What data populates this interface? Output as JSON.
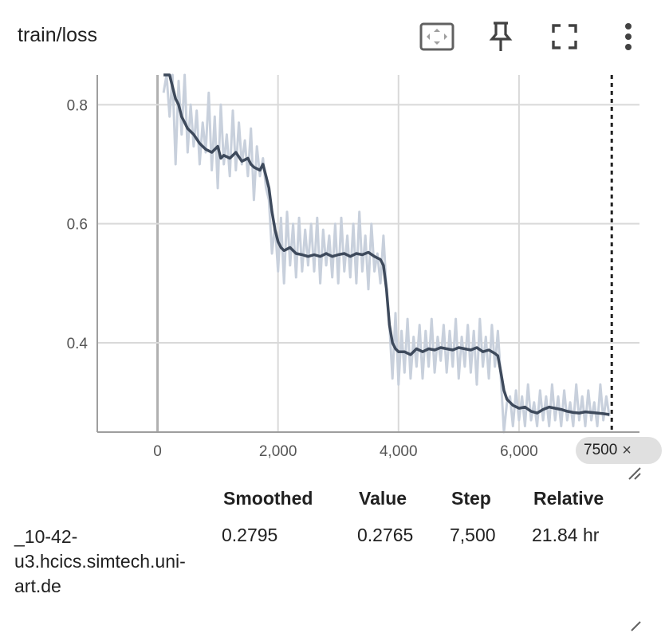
{
  "card": {
    "title": "train/loss",
    "actions": [
      {
        "name": "fit-domain",
        "icon": "fit-to-data-icon"
      },
      {
        "name": "pin",
        "icon": "pin-icon"
      },
      {
        "name": "fullscreen",
        "icon": "fullscreen-icon"
      },
      {
        "name": "more",
        "icon": "more-vert-icon"
      }
    ]
  },
  "step_badge": {
    "value": "7500",
    "close": "×"
  },
  "table": {
    "headers": {
      "smoothed": "Smoothed",
      "value": "Value",
      "step": "Step",
      "relative": "Relative"
    },
    "row": {
      "run": "_10-42-\n​u3.hcics.simtech.uni-\nart.de",
      "smoothed": "0.2795",
      "value": "0.2765",
      "step": "7,500",
      "relative": "21.84 hr"
    }
  },
  "colors": {
    "smoothed": "#3e4a5c",
    "raw": "#c8d0dc",
    "grid": "#d9d9d9",
    "axis": "#9e9e9e"
  },
  "chart_data": {
    "type": "line",
    "title": "train/loss",
    "xlabel": "",
    "ylabel": "",
    "xlim": [
      -1000,
      8000
    ],
    "ylim": [
      0.25,
      0.85
    ],
    "xticks": [
      0,
      2000,
      4000,
      6000
    ],
    "xtick_labels": [
      "0",
      "2,000",
      "4,000",
      "6,000"
    ],
    "yticks": [
      0.4,
      0.6,
      0.8
    ],
    "ytick_labels": [
      "0.4",
      "0.6",
      "0.8"
    ],
    "grid": true,
    "cursor_step": 7500,
    "series": [
      {
        "name": "Smoothed",
        "x": [
          100,
          150,
          200,
          250,
          300,
          350,
          400,
          450,
          500,
          550,
          600,
          700,
          800,
          900,
          1000,
          1050,
          1100,
          1200,
          1300,
          1400,
          1500,
          1550,
          1600,
          1700,
          1750,
          1800,
          1850,
          1900,
          1950,
          2000,
          2050,
          2100,
          2200,
          2300,
          2400,
          2500,
          2600,
          2700,
          2800,
          2900,
          3000,
          3100,
          3200,
          3300,
          3400,
          3500,
          3600,
          3700,
          3750,
          3800,
          3850,
          3900,
          3950,
          4000,
          4100,
          4200,
          4300,
          4400,
          4500,
          4600,
          4700,
          4800,
          4900,
          5000,
          5100,
          5200,
          5300,
          5400,
          5500,
          5600,
          5650,
          5700,
          5750,
          5800,
          5850,
          5900,
          6000,
          6100,
          6200,
          6300,
          6400,
          6500,
          6600,
          6700,
          6800,
          6900,
          7000,
          7100,
          7200,
          7300,
          7400,
          7500
        ],
        "y": [
          0.89,
          0.87,
          0.85,
          0.83,
          0.81,
          0.8,
          0.78,
          0.77,
          0.76,
          0.755,
          0.75,
          0.735,
          0.725,
          0.72,
          0.73,
          0.71,
          0.715,
          0.71,
          0.72,
          0.705,
          0.71,
          0.7,
          0.695,
          0.69,
          0.7,
          0.68,
          0.66,
          0.62,
          0.59,
          0.57,
          0.56,
          0.555,
          0.56,
          0.55,
          0.548,
          0.545,
          0.548,
          0.545,
          0.55,
          0.545,
          0.548,
          0.55,
          0.545,
          0.55,
          0.548,
          0.552,
          0.545,
          0.54,
          0.53,
          0.49,
          0.43,
          0.4,
          0.39,
          0.385,
          0.385,
          0.38,
          0.39,
          0.385,
          0.39,
          0.388,
          0.392,
          0.39,
          0.388,
          0.392,
          0.39,
          0.388,
          0.392,
          0.385,
          0.388,
          0.382,
          0.378,
          0.35,
          0.32,
          0.305,
          0.3,
          0.295,
          0.29,
          0.292,
          0.285,
          0.282,
          0.288,
          0.292,
          0.29,
          0.288,
          0.285,
          0.283,
          0.282,
          0.284,
          0.283,
          0.282,
          0.281,
          0.2795
        ]
      },
      {
        "name": "Value",
        "x": [
          100,
          150,
          200,
          250,
          300,
          350,
          400,
          450,
          500,
          550,
          600,
          650,
          700,
          750,
          800,
          850,
          900,
          950,
          1000,
          1050,
          1100,
          1150,
          1200,
          1250,
          1300,
          1350,
          1400,
          1450,
          1500,
          1550,
          1600,
          1650,
          1700,
          1750,
          1800,
          1850,
          1900,
          1950,
          2000,
          2050,
          2100,
          2150,
          2200,
          2250,
          2300,
          2350,
          2400,
          2450,
          2500,
          2550,
          2600,
          2650,
          2700,
          2750,
          2800,
          2850,
          2900,
          2950,
          3000,
          3050,
          3100,
          3150,
          3200,
          3250,
          3300,
          3350,
          3400,
          3450,
          3500,
          3550,
          3600,
          3650,
          3700,
          3750,
          3800,
          3850,
          3900,
          3950,
          4000,
          4050,
          4100,
          4150,
          4200,
          4250,
          4300,
          4350,
          4400,
          4450,
          4500,
          4550,
          4600,
          4650,
          4700,
          4750,
          4800,
          4850,
          4900,
          4950,
          5000,
          5050,
          5100,
          5150,
          5200,
          5250,
          5300,
          5350,
          5400,
          5450,
          5500,
          5550,
          5600,
          5650,
          5700,
          5750,
          5800,
          5850,
          5900,
          5950,
          6000,
          6050,
          6100,
          6150,
          6200,
          6250,
          6300,
          6350,
          6400,
          6450,
          6500,
          6550,
          6600,
          6650,
          6700,
          6750,
          6800,
          6850,
          6900,
          6950,
          7000,
          7050,
          7100,
          7150,
          7200,
          7250,
          7300,
          7350,
          7400,
          7450,
          7500
        ],
        "y": [
          0.82,
          0.92,
          0.78,
          0.88,
          0.7,
          0.84,
          0.75,
          0.86,
          0.72,
          0.8,
          0.73,
          0.79,
          0.7,
          0.77,
          0.72,
          0.82,
          0.69,
          0.78,
          0.66,
          0.8,
          0.7,
          0.75,
          0.68,
          0.79,
          0.69,
          0.77,
          0.7,
          0.74,
          0.68,
          0.76,
          0.64,
          0.73,
          0.68,
          0.71,
          0.66,
          0.64,
          0.55,
          0.6,
          0.52,
          0.61,
          0.5,
          0.62,
          0.53,
          0.6,
          0.51,
          0.61,
          0.52,
          0.59,
          0.53,
          0.6,
          0.52,
          0.61,
          0.5,
          0.59,
          0.53,
          0.58,
          0.51,
          0.6,
          0.5,
          0.61,
          0.52,
          0.58,
          0.51,
          0.6,
          0.5,
          0.62,
          0.52,
          0.58,
          0.49,
          0.6,
          0.52,
          0.55,
          0.5,
          0.58,
          0.49,
          0.43,
          0.34,
          0.45,
          0.33,
          0.42,
          0.35,
          0.44,
          0.34,
          0.41,
          0.36,
          0.43,
          0.34,
          0.42,
          0.36,
          0.44,
          0.35,
          0.41,
          0.37,
          0.43,
          0.35,
          0.42,
          0.36,
          0.44,
          0.34,
          0.41,
          0.36,
          0.43,
          0.35,
          0.42,
          0.33,
          0.44,
          0.36,
          0.41,
          0.34,
          0.43,
          0.36,
          0.42,
          0.34,
          0.25,
          0.3,
          0.31,
          0.26,
          0.32,
          0.27,
          0.31,
          0.26,
          0.33,
          0.27,
          0.3,
          0.26,
          0.32,
          0.27,
          0.31,
          0.26,
          0.33,
          0.27,
          0.31,
          0.26,
          0.32,
          0.27,
          0.3,
          0.26,
          0.33,
          0.27,
          0.31,
          0.26,
          0.32,
          0.27,
          0.3,
          0.26,
          0.33,
          0.27,
          0.31,
          0.2765
        ]
      }
    ]
  }
}
